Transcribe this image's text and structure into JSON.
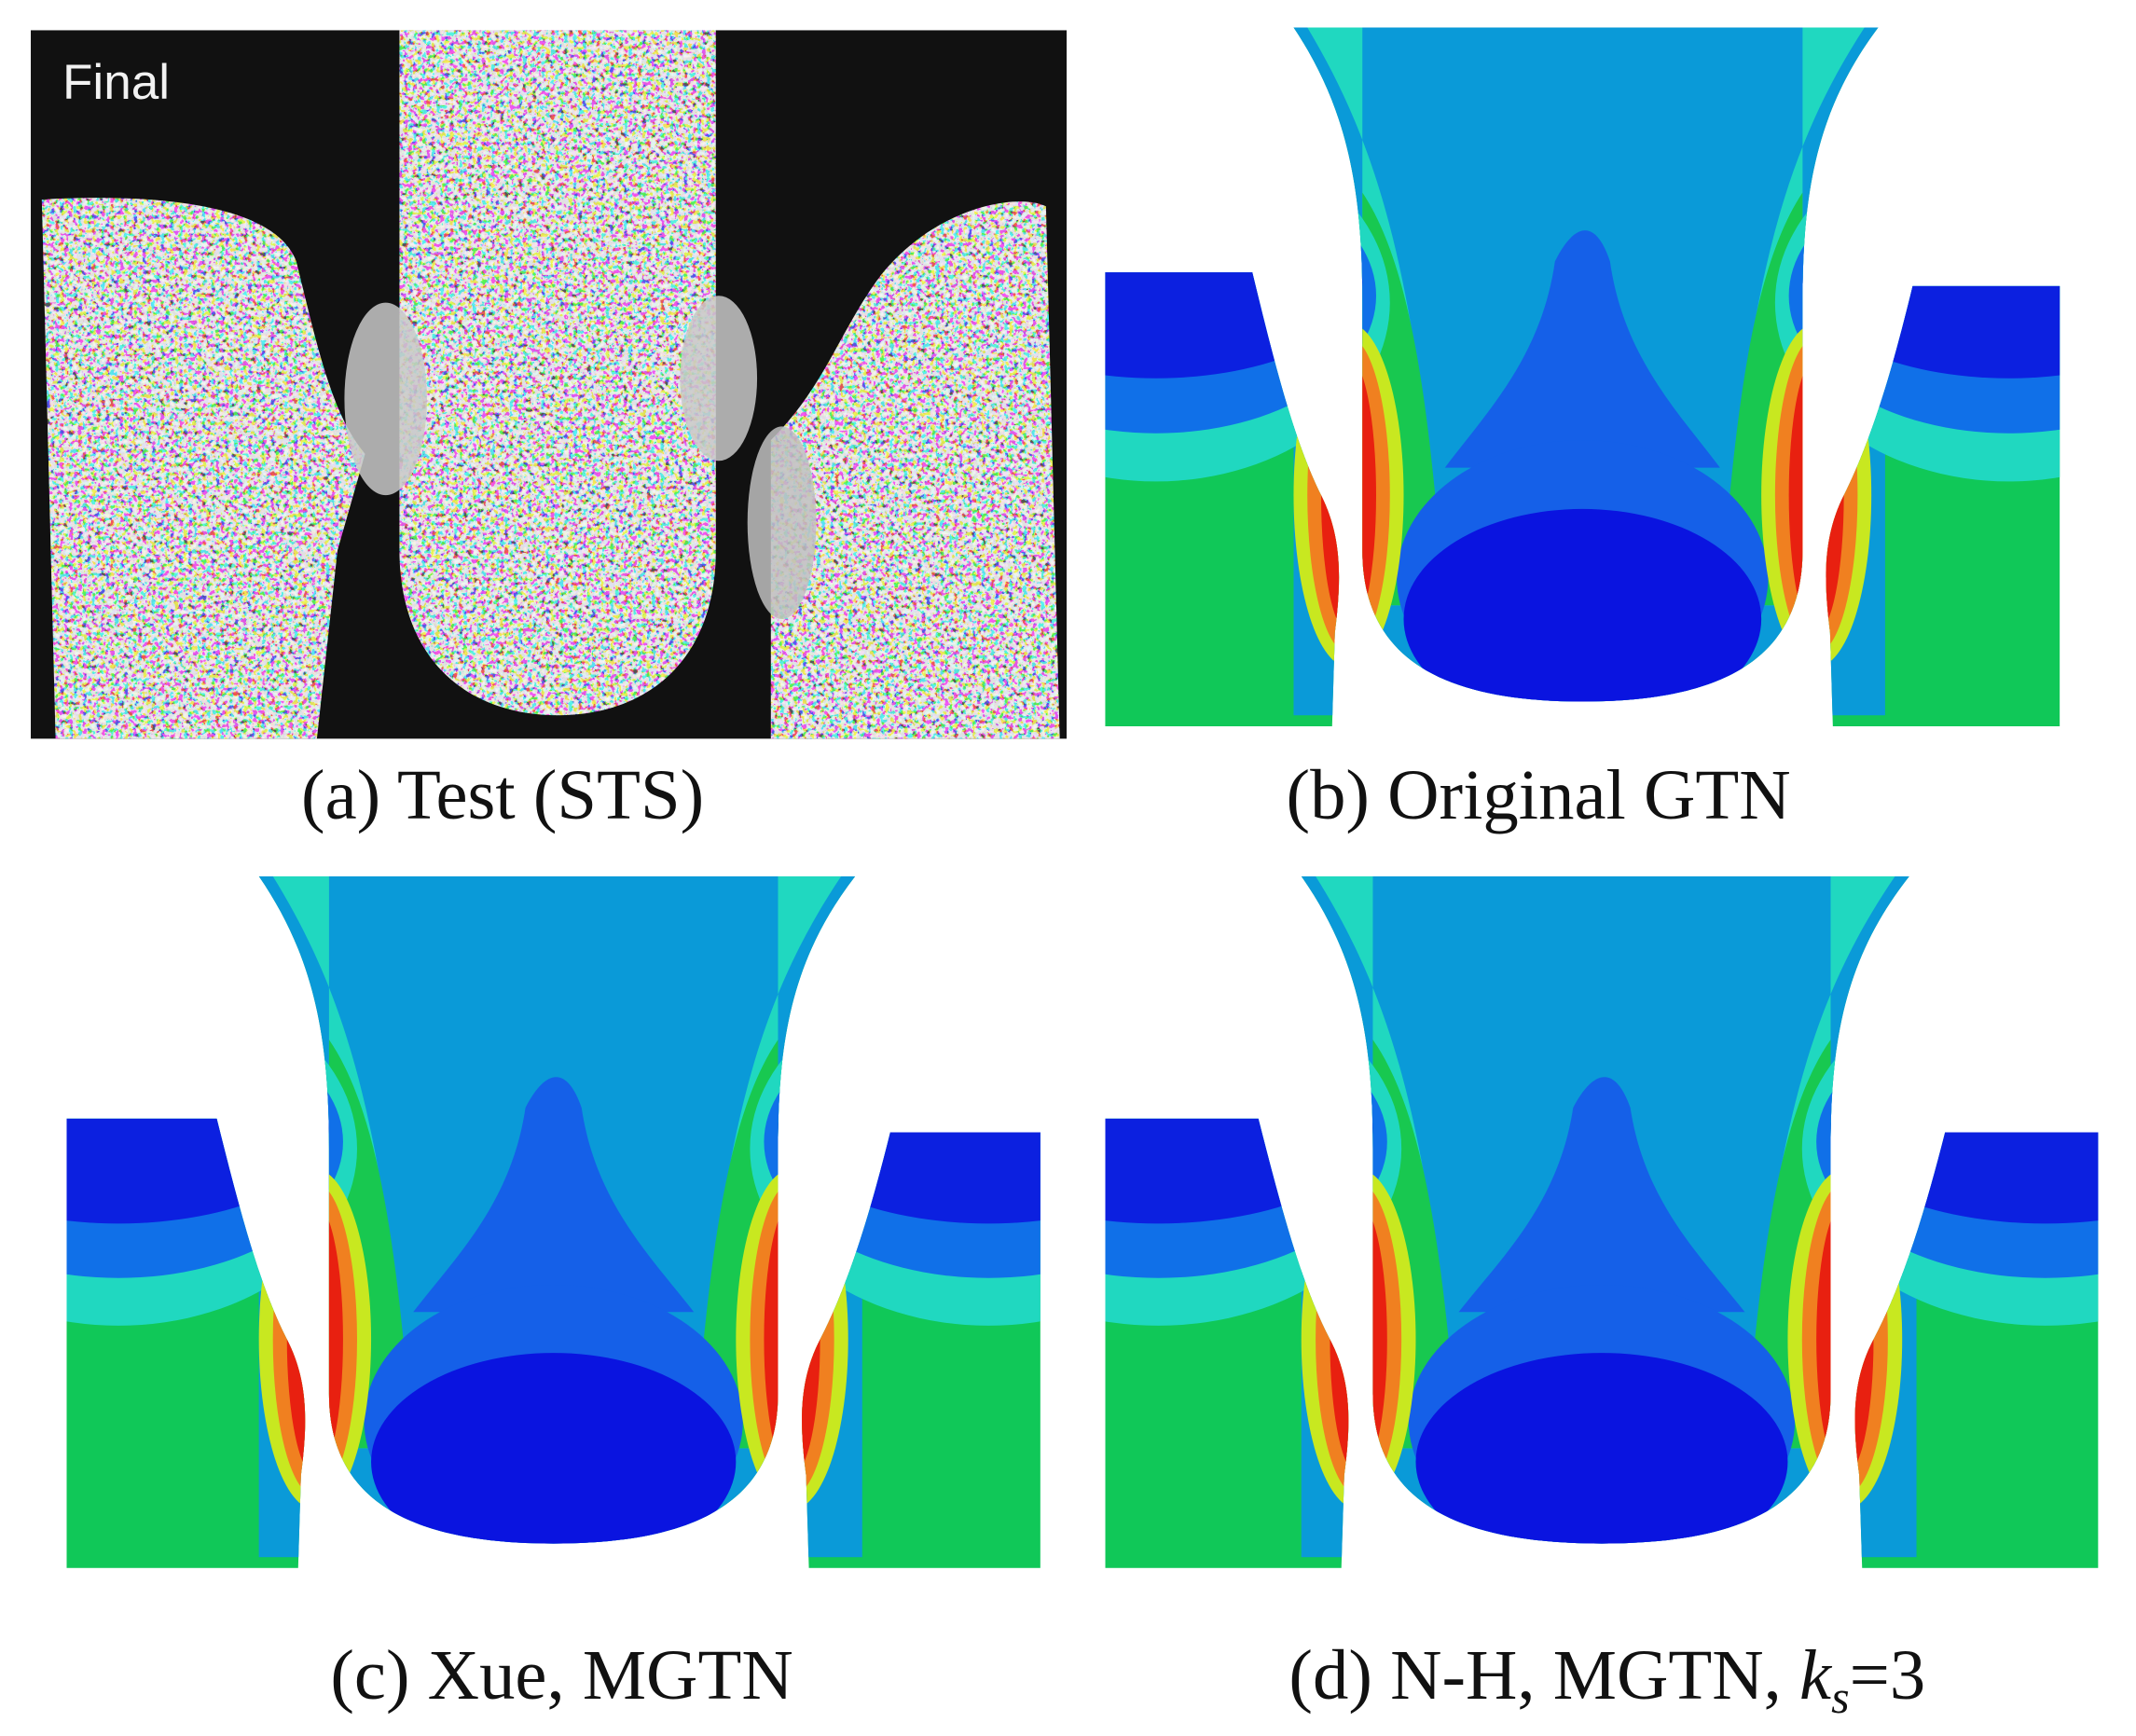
{
  "panels": [
    {
      "caption": "(a) Test (STS)",
      "overlay": "Final"
    },
    {
      "caption": "(b) Original GTN"
    },
    {
      "caption": "(c) Xue, MGTN"
    },
    {
      "caption_parts": [
        "(d) N-H, MGTN, ",
        "k",
        "s",
        "=3"
      ]
    }
  ]
}
